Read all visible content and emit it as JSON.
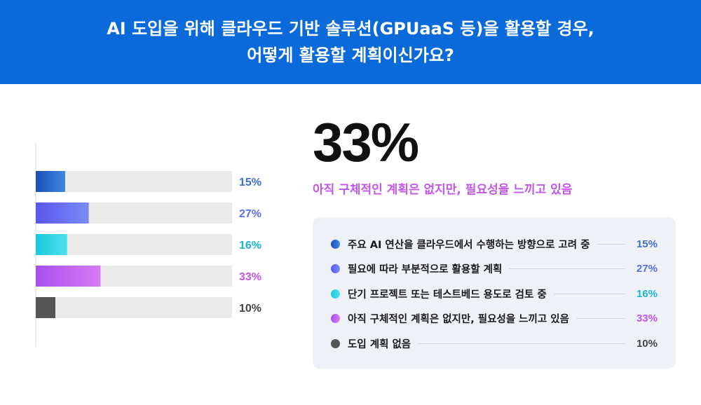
{
  "header": {
    "line1": "AI 도입을 위해 클라우드 기반 솔루션(GPUaaS 등)을 활용할 경우,",
    "line2": "어떻게 활용할 계획이신가요?"
  },
  "highlight": {
    "value": "33%",
    "label": "아직 구체적인 계획은 없지만, 필요성을 느끼고 있음",
    "color": "#c455ea"
  },
  "chart_data": {
    "type": "bar",
    "orientation": "horizontal",
    "categories": [
      "주요 AI 연산을 클라우드에서 수행하는 방향으로 고려 중",
      "필요에 따라 부분적으로 활용할 계획",
      "단기 프로젝트 또는 테스트베드 용도로 검토 중",
      "아직 구체적인 계획은 없지만, 필요성을 느끼고 있음",
      "도입 계획 없음"
    ],
    "values": [
      15,
      27,
      16,
      33,
      10
    ],
    "value_labels": [
      "15%",
      "27%",
      "16%",
      "33%",
      "10%"
    ],
    "xlim": [
      0,
      100
    ],
    "track_color": "#ebebeb",
    "colors": [
      {
        "from": "#1a4fb8",
        "to": "#3f86e6",
        "text": "#3f6fd0"
      },
      {
        "from": "#5a55f0",
        "to": "#7a8cf5",
        "text": "#5b6ee8"
      },
      {
        "from": "#19c9dc",
        "to": "#4fe0ef",
        "text": "#17b7cc"
      },
      {
        "from": "#a84ff0",
        "to": "#d97af2",
        "text": "#c455ea"
      },
      {
        "from": "#555555",
        "to": "#555555",
        "text": "#444444"
      }
    ]
  }
}
